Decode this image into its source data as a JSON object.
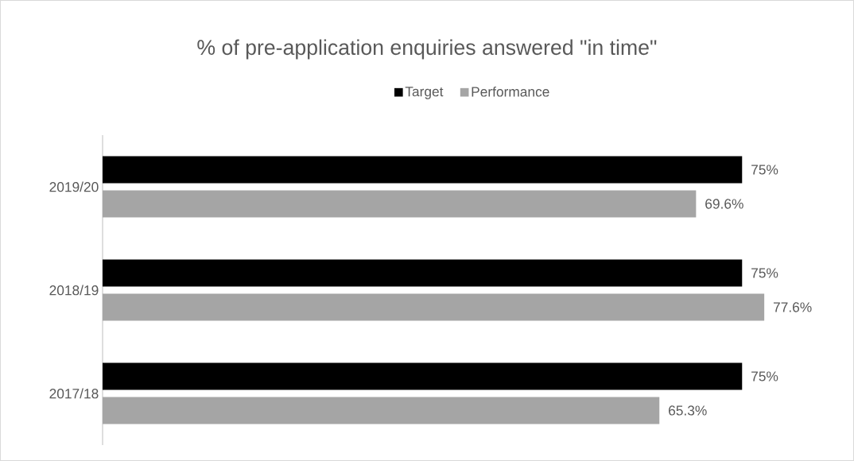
{
  "chart_data": {
    "type": "bar",
    "orientation": "horizontal",
    "title": "% of pre-application enquiries answered \"in time\"",
    "categories": [
      "2019/20",
      "2018/19",
      "2017/18"
    ],
    "series": [
      {
        "name": "Target",
        "color": "#000000",
        "values": [
          75,
          75,
          75
        ],
        "value_labels": [
          "75%",
          "75%",
          "75%"
        ]
      },
      {
        "name": "Performance",
        "color": "#a5a5a5",
        "values": [
          69.6,
          77.6,
          65.3
        ],
        "value_labels": [
          "69.6%",
          "77.6%",
          "65.3%"
        ]
      }
    ],
    "legend": "top",
    "tick_labels": "y"
  }
}
